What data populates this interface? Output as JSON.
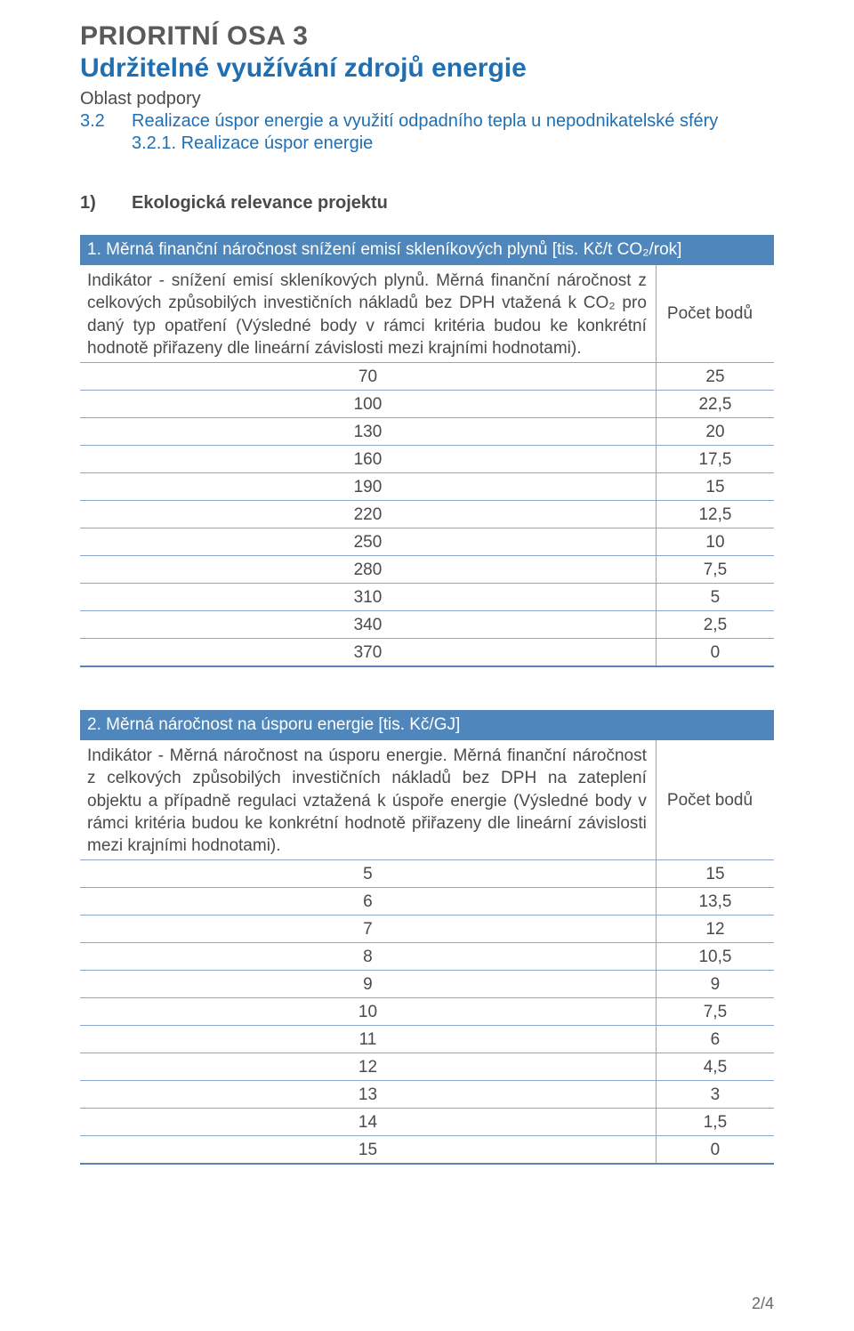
{
  "headings": {
    "h1": "PRIORITNÍ OSA 3",
    "h2": "Udržitelné využívání zdrojů energie",
    "sub": "Oblast podpory",
    "line32_num": "3.2",
    "line32_text": "Realizace úspor energie a využití odpadního tepla u nepodnikatelské sféry",
    "line321": "3.2.1.  Realizace úspor energie",
    "sec1_num": "1)",
    "sec1_text": "Ekologická relevance projektu"
  },
  "table1": {
    "header": "1. Měrná finanční náročnost snížení emisí skleníkových plynů [tis. Kč/t CO₂/rok]",
    "desc": "Indikátor - snížení emisí skleníkových plynů. Měrná finanční náročnost z celkových způsobilých investičních nákladů bez DPH vtažená k CO₂ pro daný typ opatření (Výsledné body v rámci kritéria budou ke konkrétní hodnotě přiřazeny dle lineární závislosti mezi krajními hodnotami).",
    "pts_label": "Počet bodů",
    "rows": [
      {
        "v": "70",
        "p": "25"
      },
      {
        "v": "100",
        "p": "22,5"
      },
      {
        "v": "130",
        "p": "20"
      },
      {
        "v": "160",
        "p": "17,5"
      },
      {
        "v": "190",
        "p": "15"
      },
      {
        "v": "220",
        "p": "12,5"
      },
      {
        "v": "250",
        "p": "10"
      },
      {
        "v": "280",
        "p": "7,5"
      },
      {
        "v": "310",
        "p": "5"
      },
      {
        "v": "340",
        "p": "2,5"
      },
      {
        "v": "370",
        "p": "0"
      }
    ]
  },
  "table2": {
    "header": "2. Měrná náročnost na úsporu energie [tis. Kč/GJ]",
    "desc": "Indikátor - Měrná náročnost na úsporu energie. Měrná finanční náročnost z celkových způsobilých investičních nákladů bez DPH na zateplení objektu a případně regulaci vztažená k úspoře energie (Výsledné body v rámci kritéria budou ke konkrétní hodnotě přiřazeny dle lineární závislosti mezi krajními hodnotami).",
    "pts_label": "Počet bodů",
    "rows": [
      {
        "v": "5",
        "p": "15"
      },
      {
        "v": "6",
        "p": "13,5"
      },
      {
        "v": "7",
        "p": "12"
      },
      {
        "v": "8",
        "p": "10,5"
      },
      {
        "v": "9",
        "p": "9"
      },
      {
        "v": "10",
        "p": "7,5"
      },
      {
        "v": "11",
        "p": "6"
      },
      {
        "v": "12",
        "p": "4,5"
      },
      {
        "v": "13",
        "p": "3"
      },
      {
        "v": "14",
        "p": "1,5"
      },
      {
        "v": "15",
        "p": "0"
      }
    ]
  },
  "pagenum": "2/4",
  "colors": {
    "accent_blue_text": "#1f6fb2",
    "table_header_bg": "#4f87bd",
    "table_header_text": "#ffffff",
    "rule_color": "#8aa7c7",
    "body_text": "#4a4a4a",
    "h1_text": "#5a5a5a"
  }
}
